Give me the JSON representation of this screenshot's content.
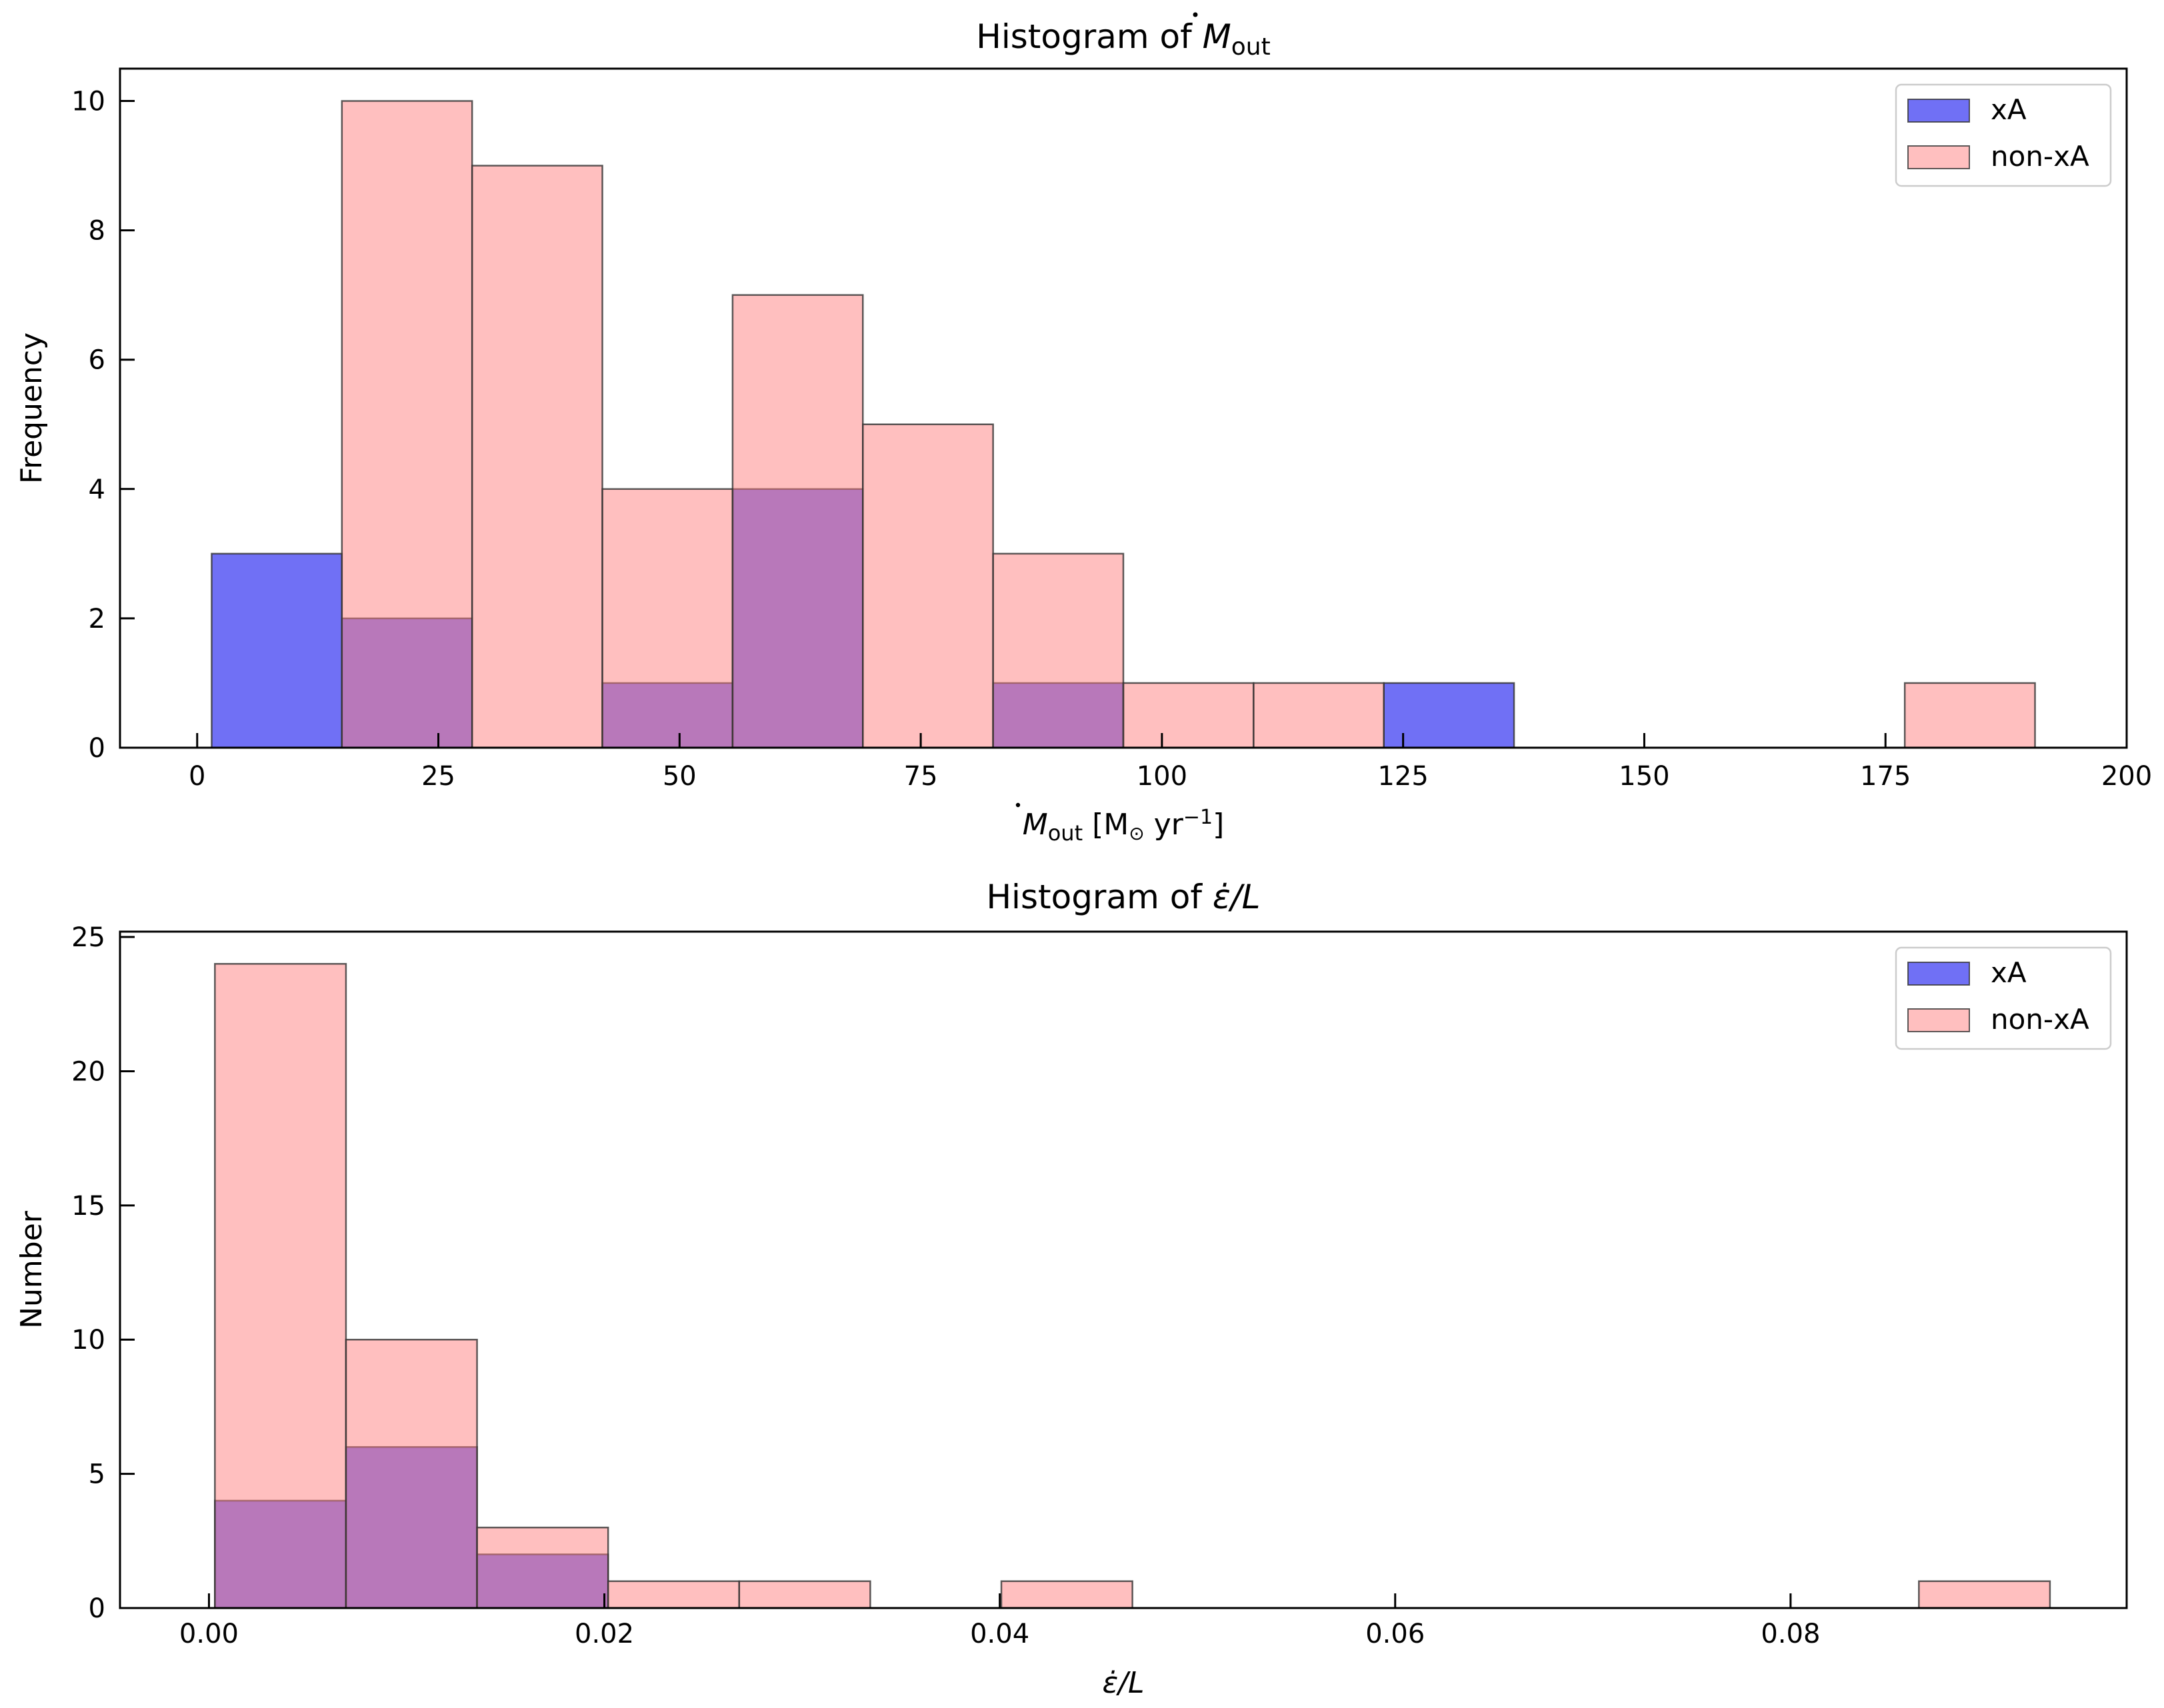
{
  "chart_data": [
    {
      "type": "bar",
      "title": "Histogram of Ṁ_out",
      "title_parts": {
        "prefix": "Histogram of ",
        "symbol": "M",
        "subscript": "out"
      },
      "xlabel": "Ṁ_out [M_⊙ yr⁻¹]",
      "xlabel_parts": {
        "symbol": "M",
        "subscript": "out",
        "units_open": "[M",
        "sun": "⊙",
        "units_mid": "yr",
        "exponent": "−1",
        "units_close": "]"
      },
      "ylabel": "Frequency",
      "xlim": [
        -8,
        200
      ],
      "ylim": [
        0,
        10.5
      ],
      "xticks": [
        0,
        25,
        50,
        75,
        100,
        125,
        150,
        175,
        200
      ],
      "xtick_labels": [
        "0",
        "25",
        "50",
        "75",
        "100",
        "125",
        "150",
        "175",
        "200"
      ],
      "yticks": [
        0,
        2,
        4,
        6,
        8,
        10
      ],
      "ytick_labels": [
        "0",
        "2",
        "4",
        "6",
        "8",
        "10"
      ],
      "bin_edges": [
        1.5,
        15.0,
        28.5,
        42.0,
        55.5,
        69.0,
        82.5,
        96.0,
        109.5,
        123.0,
        136.5,
        150.0,
        163.5,
        177.0,
        190.5
      ],
      "series": [
        {
          "name": "xA",
          "color": "#7070f5",
          "values": [
            3,
            2,
            0,
            1,
            4,
            0,
            1,
            0,
            0,
            1,
            0,
            0,
            0,
            0
          ]
        },
        {
          "name": "non-xA",
          "color": "#ff7f7f",
          "values": [
            0,
            10,
            9,
            4,
            7,
            5,
            3,
            1,
            1,
            0,
            0,
            0,
            0,
            1
          ]
        }
      ],
      "overlap_color": "#c0407a",
      "legend": {
        "location": "top-right",
        "entries": [
          "xA",
          "non-xA"
        ]
      }
    },
    {
      "type": "bar",
      "title": "Histogram of ε̇/L",
      "title_parts": {
        "prefix": "Histogram of ",
        "symbol": "ε̇/L"
      },
      "xlabel": "ε̇/L",
      "ylabel": "Number",
      "xlim": [
        -0.0045,
        0.097
      ],
      "ylim": [
        0,
        25.2
      ],
      "xticks": [
        0.0,
        0.02,
        0.04,
        0.06,
        0.08
      ],
      "xtick_labels": [
        "0.00",
        "0.02",
        "0.04",
        "0.06",
        "0.08"
      ],
      "yticks": [
        0,
        5,
        10,
        15,
        20,
        25
      ],
      "ytick_labels": [
        "0",
        "5",
        "10",
        "15",
        "20",
        "25"
      ],
      "bin_edges": [
        0.0003,
        0.00693,
        0.01356,
        0.02019,
        0.02682,
        0.03345,
        0.04008,
        0.04671,
        0.05334,
        0.05997,
        0.0666,
        0.07323,
        0.07986,
        0.08649,
        0.09312
      ],
      "series": [
        {
          "name": "xA",
          "color": "#7070f5",
          "values": [
            4,
            6,
            2,
            0,
            0,
            0,
            0,
            0,
            0,
            0,
            0,
            0,
            0,
            0
          ]
        },
        {
          "name": "non-xA",
          "color": "#ff7f7f",
          "values": [
            24,
            10,
            3,
            1,
            1,
            0,
            1,
            0,
            0,
            0,
            0,
            0,
            0,
            1
          ]
        }
      ],
      "overlap_color": "#c0407a",
      "legend": {
        "location": "top-right",
        "entries": [
          "xA",
          "non-xA"
        ]
      }
    }
  ]
}
